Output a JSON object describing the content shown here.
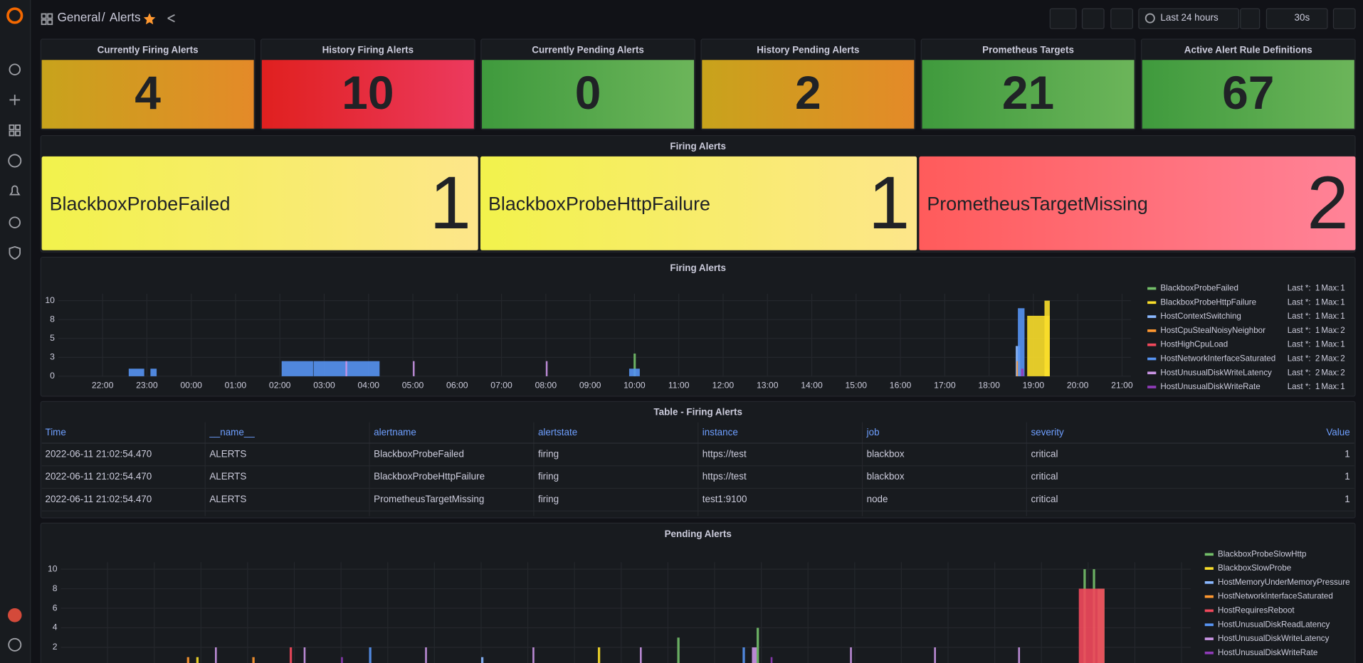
{
  "header": {
    "folder": "General",
    "separator": "/",
    "title": "Alerts",
    "time_range": "Last 24 hours",
    "refresh": "30s"
  },
  "stats": [
    {
      "title": "Currently Firing Alerts",
      "value": 4,
      "colors": [
        "#c8a31c",
        "#e48a28"
      ]
    },
    {
      "title": "History Firing Alerts",
      "value": 10,
      "colors": [
        "#e0201f",
        "#ec3a5e"
      ]
    },
    {
      "title": "Currently Pending Alerts",
      "value": 0,
      "colors": [
        "#3f9a3d",
        "#6cb55a"
      ]
    },
    {
      "title": "History Pending Alerts",
      "value": 2,
      "colors": [
        "#c8a31c",
        "#e48a28"
      ]
    },
    {
      "title": "Prometheus Targets",
      "value": 21,
      "colors": [
        "#3f9a3d",
        "#6cb55a"
      ]
    },
    {
      "title": "Active Alert Rule Definitions",
      "value": 67,
      "colors": [
        "#3f9a3d",
        "#6cb55a"
      ]
    }
  ],
  "firing_alerts": {
    "title": "Firing Alerts",
    "items": [
      {
        "name": "BlackboxProbeFailed",
        "value": 1,
        "colors": [
          "#f2f24c",
          "#fde68a"
        ]
      },
      {
        "name": "BlackboxProbeHttpFailure",
        "value": 1,
        "colors": [
          "#f2f24c",
          "#fde68a"
        ]
      },
      {
        "name": "PrometheusTargetMissing",
        "value": 2,
        "colors": [
          "#ff5b5b",
          "#ff8398"
        ]
      }
    ]
  },
  "firing_chart": {
    "type": "bar",
    "title": "Firing Alerts",
    "xlim": [
      0,
      24.2
    ],
    "xticks": [
      {
        "value": 1,
        "label": "22:00"
      },
      {
        "value": 2,
        "label": "23:00"
      },
      {
        "value": 3,
        "label": "00:00"
      },
      {
        "value": 4,
        "label": "01:00"
      },
      {
        "value": 5,
        "label": "02:00"
      },
      {
        "value": 6,
        "label": "03:00"
      },
      {
        "value": 7,
        "label": "04:00"
      },
      {
        "value": 8,
        "label": "05:00"
      },
      {
        "value": 9,
        "label": "06:00"
      },
      {
        "value": 10,
        "label": "07:00"
      },
      {
        "value": 11,
        "label": "08:00"
      },
      {
        "value": 12,
        "label": "09:00"
      },
      {
        "value": 13,
        "label": "10:00"
      },
      {
        "value": 14,
        "label": "11:00"
      },
      {
        "value": 15,
        "label": "12:00"
      },
      {
        "value": 16,
        "label": "13:00"
      },
      {
        "value": 17,
        "label": "14:00"
      },
      {
        "value": 18,
        "label": "15:00"
      },
      {
        "value": 19,
        "label": "16:00"
      },
      {
        "value": 20,
        "label": "17:00"
      },
      {
        "value": 21,
        "label": "18:00"
      },
      {
        "value": 22,
        "label": "19:00"
      },
      {
        "value": 23,
        "label": "20:00"
      },
      {
        "value": 24,
        "label": "21:00"
      }
    ],
    "ylim": [
      0,
      10
    ],
    "yticks": [
      0,
      {
        "value": 2.5,
        "label": "3"
      },
      5,
      {
        "value": 7.5,
        "label": "8"
      },
      10
    ],
    "legend_last": "Last *:",
    "legend_max": "Max:",
    "series": [
      {
        "name": "BlackboxProbeFailed",
        "color": "#73bf69",
        "last": 1,
        "max": 1,
        "bars": [
          [
            12.98,
            13.03,
            3
          ],
          [
            22.25,
            22.37,
            1
          ]
        ]
      },
      {
        "name": "BlackboxProbeHttpFailure",
        "color": "#fade2a",
        "last": 1,
        "max": 1,
        "bars": [
          [
            21.86,
            22.37,
            8
          ],
          [
            22.25,
            22.37,
            10
          ]
        ]
      },
      {
        "name": "HostContextSwitching",
        "color": "#8ab8ff",
        "last": 1,
        "max": 1,
        "bars": [
          [
            21.6,
            21.7,
            4
          ]
        ]
      },
      {
        "name": "HostCpuStealNoisyNeighbor",
        "color": "#ff9830",
        "last": 1,
        "max": 2,
        "bars": [
          [
            21.62,
            21.7,
            2
          ]
        ]
      },
      {
        "name": "HostHighCpuLoad",
        "color": "#f2495c",
        "last": 1,
        "max": 1,
        "bars": [
          [
            21.7,
            21.75,
            1
          ]
        ]
      },
      {
        "name": "HostNetworkInterfaceSaturated",
        "color": "#5794f2",
        "last": 2,
        "max": 2,
        "bars": [
          [
            1.59,
            1.94,
            1
          ],
          [
            2.08,
            2.22,
            1
          ],
          [
            5.04,
            5.75,
            2
          ],
          [
            5.76,
            7.25,
            2
          ],
          [
            12.88,
            13.12,
            1
          ],
          [
            21.65,
            21.8,
            9
          ]
        ]
      },
      {
        "name": "HostUnusualDiskWriteLatency",
        "color": "#ca95e5",
        "last": 2,
        "max": 2,
        "bars": [
          [
            6.48,
            6.52,
            2
          ],
          [
            8.0,
            8.04,
            2
          ],
          [
            11.0,
            11.04,
            2
          ]
        ]
      },
      {
        "name": "HostUnusualDiskWriteRate",
        "color": "#8f3bb8",
        "last": 1,
        "max": 1,
        "bars": [
          [
            21.72,
            21.78,
            1
          ]
        ]
      }
    ]
  },
  "table": {
    "title": "Table - Firing Alerts",
    "columns": [
      "Time",
      "__name__",
      "alertname",
      "alertstate",
      "instance",
      "job",
      "severity",
      "Value"
    ],
    "rows": [
      [
        "2022-06-11 21:02:54.470",
        "ALERTS",
        "BlackboxProbeFailed",
        "firing",
        "https://test",
        "blackbox",
        "critical",
        1
      ],
      [
        "2022-06-11 21:02:54.470",
        "ALERTS",
        "BlackboxProbeHttpFailure",
        "firing",
        "https://test",
        "blackbox",
        "critical",
        1
      ],
      [
        "2022-06-11 21:02:54.470",
        "ALERTS",
        "PrometheusTargetMissing",
        "firing",
        "test1:9100",
        "node",
        "critical",
        1
      ]
    ]
  },
  "pending_chart": {
    "type": "bar",
    "title": "Pending Alerts",
    "xlim": [
      0,
      24.2
    ],
    "ylim": [
      0,
      10
    ],
    "yticks": [
      2,
      4,
      6,
      8,
      10
    ],
    "series": [
      {
        "name": "BlackboxProbeSlowHttp",
        "color": "#73bf69",
        "bars": [
          [
            13.2,
            13.25,
            3
          ],
          [
            14.9,
            14.95,
            4
          ],
          [
            21.9,
            21.95,
            10
          ],
          [
            22.1,
            22.15,
            10
          ],
          [
            22.2,
            22.35,
            8
          ]
        ]
      },
      {
        "name": "BlackboxSlowProbe",
        "color": "#fade2a",
        "bars": [
          [
            2.9,
            2.95,
            1
          ],
          [
            11.5,
            11.55,
            2
          ]
        ]
      },
      {
        "name": "HostMemoryUnderMemoryPressure",
        "color": "#8ab8ff",
        "bars": [
          [
            9.0,
            9.05,
            1
          ]
        ]
      },
      {
        "name": "HostNetworkInterfaceSaturated",
        "color": "#ff9830",
        "bars": [
          [
            2.7,
            2.75,
            1
          ],
          [
            4.1,
            4.15,
            1
          ]
        ]
      },
      {
        "name": "HostRequiresReboot",
        "color": "#f2495c",
        "bars": [
          [
            4.9,
            4.95,
            2
          ],
          [
            21.8,
            22.35,
            8
          ]
        ]
      },
      {
        "name": "HostUnusualDiskReadLatency",
        "color": "#5794f2",
        "bars": [
          [
            6.6,
            6.65,
            2
          ],
          [
            14.6,
            14.65,
            2
          ]
        ]
      },
      {
        "name": "HostUnusualDiskWriteLatency",
        "color": "#ca95e5",
        "bars": [
          [
            3.3,
            3.34,
            2
          ],
          [
            5.2,
            5.24,
            2
          ],
          [
            7.8,
            7.84,
            2
          ],
          [
            10.1,
            10.14,
            2
          ],
          [
            12.4,
            12.44,
            2
          ],
          [
            14.8,
            14.9,
            2
          ],
          [
            16.9,
            16.94,
            2
          ],
          [
            18.7,
            18.74,
            2
          ],
          [
            20.5,
            20.54,
            2
          ]
        ]
      },
      {
        "name": "HostUnusualDiskWriteRate",
        "color": "#8f3bb8",
        "bars": [
          [
            6.0,
            6.04,
            1
          ],
          [
            15.2,
            15.24,
            1
          ]
        ]
      }
    ]
  }
}
